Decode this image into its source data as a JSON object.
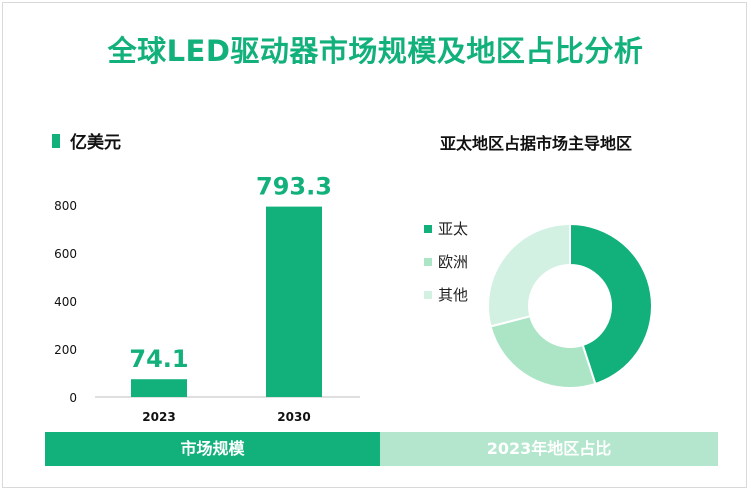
{
  "title": "全球LED驱动器市场规模及地区占比分析",
  "left_legend": {
    "label": "亿美元",
    "color": "#12b07a"
  },
  "right_title": "亚太地区占据市场主导地区",
  "bottom_strips": {
    "left": "市场规模",
    "right": "2023年地区占比"
  },
  "colors": {
    "primary": "#12b07a",
    "mid": "#abe5c6",
    "light": "#d3f1e2"
  },
  "chart_data": [
    {
      "type": "bar",
      "categories": [
        "2023",
        "2030"
      ],
      "values": [
        74.1,
        793.3
      ],
      "value_labels": [
        "74.1",
        "793.3"
      ],
      "ylabel": "亿美元",
      "ylim": [
        0,
        800
      ],
      "yticks": [
        0,
        200,
        400,
        600,
        800
      ],
      "grid": false
    },
    {
      "type": "pie",
      "title": "亚太地区占据市场主导地区",
      "labels": [
        "亚太",
        "欧洲",
        "其他"
      ],
      "values": [
        45,
        26,
        29
      ],
      "colors": [
        "#12b07a",
        "#abe5c6",
        "#d3f1e2"
      ],
      "donut": true,
      "legend": "left"
    }
  ]
}
